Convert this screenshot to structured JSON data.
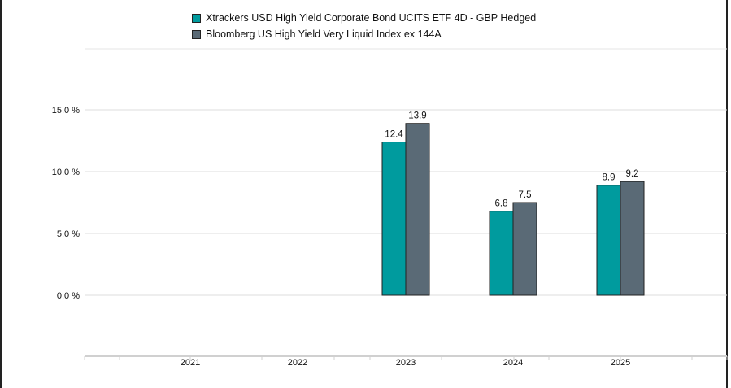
{
  "chart_data": {
    "type": "bar",
    "categories": [
      "2021",
      "2022",
      "2023",
      "2024",
      "2025"
    ],
    "series": [
      {
        "name": "Xtrackers USD High Yield Corporate Bond UCITS ETF 4D - GBP Hedged",
        "values": [
          null,
          null,
          12.4,
          6.8,
          8.9
        ],
        "labels": [
          "",
          "",
          "12.4",
          "6.8",
          "8.9"
        ]
      },
      {
        "name": "Bloomberg US High Yield Very Liquid Index ex 144A",
        "values": [
          null,
          null,
          13.9,
          7.5,
          9.2
        ],
        "labels": [
          "",
          "",
          "13.9",
          "7.5",
          "9.2"
        ]
      }
    ],
    "colors": [
      "#009b9e",
      "#5a6a76"
    ],
    "yticks": [
      {
        "value": 0,
        "label": "0.0 %"
      },
      {
        "value": 5,
        "label": "5.0 %"
      },
      {
        "value": 10,
        "label": "10.0 %"
      },
      {
        "value": 15,
        "label": "15.0 %"
      }
    ],
    "ylim": [
      -5,
      20
    ],
    "grid": true,
    "legend_position": "top"
  }
}
